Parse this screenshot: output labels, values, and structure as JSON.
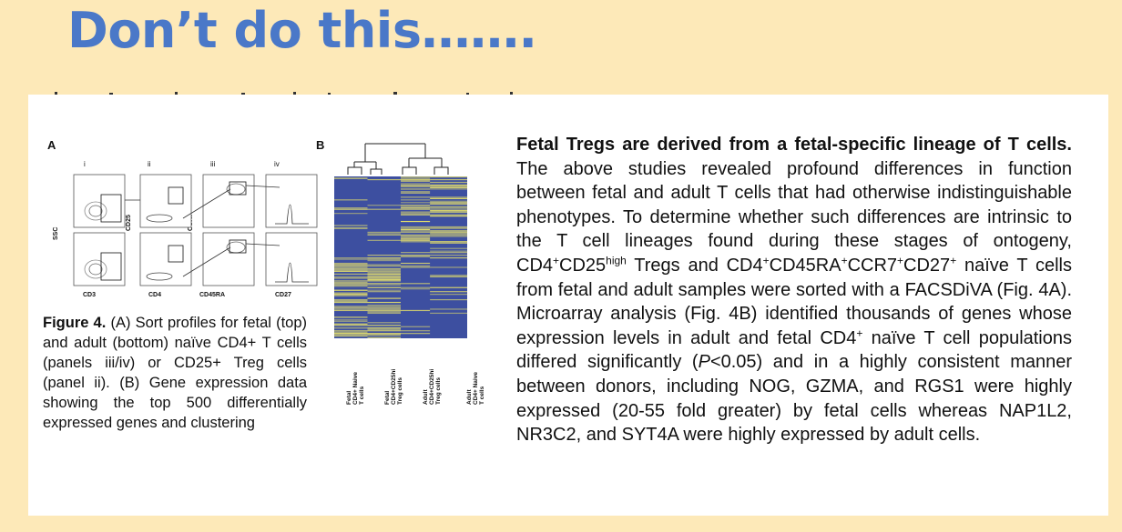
{
  "slide": {
    "title": "Don’t do this……."
  },
  "figure": {
    "panel_a_label": "A",
    "panel_b_label": "B",
    "subpanel_labels": [
      "i",
      "ii",
      "iii",
      "iv"
    ],
    "y_axis_labels": [
      "SSC",
      "CD25",
      "CCR7"
    ],
    "x_axis_labels": [
      "CD3",
      "CD4",
      "CD45RA",
      "CD27"
    ],
    "heatmap_columns": [
      [
        "Fetal",
        "CD4+ Naive",
        "T cells"
      ],
      [
        "Fetal",
        "CD4+CD25hi",
        "Treg cells"
      ],
      [
        "Adult",
        "CD4+CD25hi",
        "Treg cells"
      ],
      [
        "Adult",
        "CD4+ Naive",
        "T cells"
      ]
    ],
    "heatmap_colors": {
      "low": "#3d4fa0",
      "high": "#e6e06a"
    }
  },
  "caption": {
    "label": "Figure 4.",
    "text": " (A) Sort profiles for fetal (top) and adult (bottom) naïve CD4+ T cells (panels iii/iv) or CD25+ Treg cells (panel ii). (B) Gene expression data showing the top 500 differentially expressed genes and clustering"
  },
  "body": {
    "lead": "Fetal Tregs are derived from a fetal-specific lineage of T cells.",
    "p1": " The above studies revealed profound differences in function between fetal and adult T cells that had otherwise indistinguishable phenotypes. To determine whether such differences are intrinsic to the T cell lineages found during these stages of ontogeny, CD4",
    "sup1": "+",
    "p2": "CD25",
    "sup2": "high",
    "p3": " Tregs and CD4",
    "sup3": "+",
    "p4": "CD45RA",
    "sup4": "+",
    "p5": "CCR7",
    "sup5": "+",
    "p6": "CD27",
    "sup6": "+",
    "p7": " naïve T cells from fetal and adult samples were sorted with a FACSDiVA (Fig. 4A). Microarray analysis (Fig. 4B) identified thousands of genes whose expression levels in adult and fetal CD4",
    "sup7": "+",
    "p8": " naïve T cell populations differed significantly (",
    "p_italic": "P",
    "p9": "<0.05) and in a highly consistent manner between donors, including NOG, GZMA, and RGS1 were highly expressed (20-55 fold greater) by fetal cells whereas NAP1L2, NR3C2, and SYT4A were highly expressed by adult cells."
  }
}
